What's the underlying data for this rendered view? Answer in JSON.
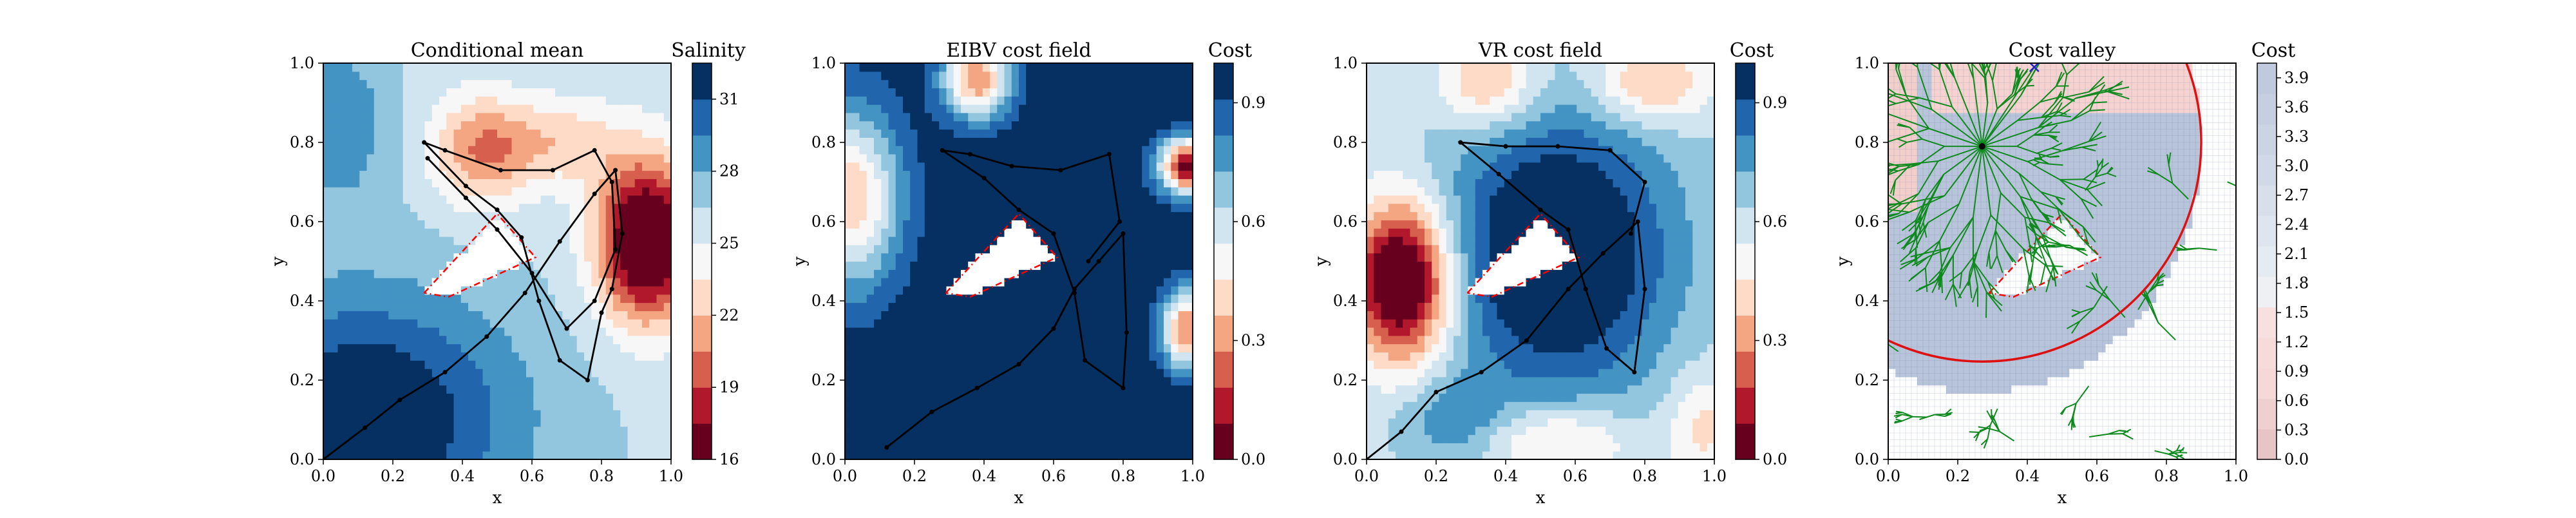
{
  "figure": {
    "panel_count": 4
  },
  "chart_data": [
    {
      "type": "heatmap",
      "title": "Conditional mean",
      "xlabel": "x",
      "ylabel": "y",
      "xlim": [
        0,
        1
      ],
      "ylim": [
        0,
        1
      ],
      "xticks": [
        "0.0",
        "0.2",
        "0.4",
        "0.6",
        "0.8",
        "1.0"
      ],
      "yticks": [
        "0.0",
        "0.2",
        "0.4",
        "0.6",
        "0.8",
        "1.0"
      ],
      "colormap": "RdBu",
      "colorbar": {
        "label": "Salinity",
        "ticks": [
          "16",
          "19",
          "22",
          "25",
          "28",
          "31"
        ],
        "range": [
          16,
          32.5
        ]
      },
      "obstacle": [
        [
          0.29,
          0.42
        ],
        [
          0.5,
          0.62
        ],
        [
          0.61,
          0.51
        ],
        [
          0.36,
          0.41
        ]
      ],
      "path": [
        [
          0.0,
          0.0
        ],
        [
          0.12,
          0.08
        ],
        [
          0.22,
          0.15
        ],
        [
          0.35,
          0.22
        ],
        [
          0.47,
          0.31
        ],
        [
          0.58,
          0.42
        ],
        [
          0.68,
          0.55
        ],
        [
          0.78,
          0.67
        ],
        [
          0.84,
          0.73
        ],
        [
          0.86,
          0.57
        ],
        [
          0.83,
          0.43
        ],
        [
          0.8,
          0.37
        ],
        [
          0.76,
          0.2
        ],
        [
          0.68,
          0.25
        ],
        [
          0.62,
          0.4
        ],
        [
          0.57,
          0.56
        ],
        [
          0.5,
          0.63
        ],
        [
          0.41,
          0.69
        ],
        [
          0.29,
          0.8
        ],
        [
          0.35,
          0.78
        ],
        [
          0.51,
          0.73
        ],
        [
          0.66,
          0.73
        ],
        [
          0.78,
          0.78
        ],
        [
          0.83,
          0.7
        ],
        [
          0.84,
          0.53
        ],
        [
          0.78,
          0.4
        ],
        [
          0.7,
          0.33
        ],
        [
          0.6,
          0.47
        ],
        [
          0.5,
          0.58
        ],
        [
          0.41,
          0.66
        ],
        [
          0.3,
          0.76
        ]
      ]
    },
    {
      "type": "heatmap",
      "title": "EIBV cost field",
      "xlabel": "x",
      "ylabel": "y",
      "xlim": [
        0,
        1
      ],
      "ylim": [
        0,
        1
      ],
      "xticks": [
        "0.0",
        "0.2",
        "0.4",
        "0.6",
        "0.8",
        "1.0"
      ],
      "yticks": [
        "0.0",
        "0.2",
        "0.4",
        "0.6",
        "0.8",
        "1.0"
      ],
      "colormap": "RdBu",
      "colorbar": {
        "label": "Cost",
        "ticks": [
          "0.0",
          "0.3",
          "0.6",
          "0.9"
        ],
        "range": [
          0,
          1
        ]
      },
      "obstacle": [
        [
          0.29,
          0.42
        ],
        [
          0.5,
          0.62
        ],
        [
          0.61,
          0.51
        ],
        [
          0.36,
          0.41
        ]
      ],
      "path": [
        [
          0.12,
          0.03
        ],
        [
          0.25,
          0.12
        ],
        [
          0.38,
          0.18
        ],
        [
          0.5,
          0.24
        ],
        [
          0.6,
          0.33
        ],
        [
          0.66,
          0.43
        ],
        [
          0.73,
          0.5
        ],
        [
          0.8,
          0.57
        ],
        [
          0.81,
          0.32
        ],
        [
          0.8,
          0.18
        ],
        [
          0.69,
          0.25
        ],
        [
          0.66,
          0.42
        ],
        [
          0.6,
          0.57
        ],
        [
          0.5,
          0.63
        ],
        [
          0.4,
          0.71
        ],
        [
          0.28,
          0.78
        ],
        [
          0.36,
          0.77
        ],
        [
          0.48,
          0.74
        ],
        [
          0.62,
          0.73
        ],
        [
          0.76,
          0.77
        ],
        [
          0.79,
          0.6
        ],
        [
          0.7,
          0.5
        ]
      ]
    },
    {
      "type": "heatmap",
      "title": "VR cost field",
      "xlabel": "x",
      "ylabel": "y",
      "xlim": [
        0,
        1
      ],
      "ylim": [
        0,
        1
      ],
      "xticks": [
        "0.0",
        "0.2",
        "0.4",
        "0.6",
        "0.8",
        "1.0"
      ],
      "yticks": [
        "0.0",
        "0.2",
        "0.4",
        "0.6",
        "0.8",
        "1.0"
      ],
      "colormap": "RdBu",
      "colorbar": {
        "label": "Cost",
        "ticks": [
          "0.0",
          "0.3",
          "0.6",
          "0.9"
        ],
        "range": [
          0,
          1
        ]
      },
      "obstacle": [
        [
          0.29,
          0.42
        ],
        [
          0.5,
          0.62
        ],
        [
          0.61,
          0.51
        ],
        [
          0.36,
          0.41
        ]
      ],
      "path": [
        [
          0.0,
          0.0
        ],
        [
          0.1,
          0.07
        ],
        [
          0.2,
          0.17
        ],
        [
          0.33,
          0.22
        ],
        [
          0.46,
          0.3
        ],
        [
          0.58,
          0.43
        ],
        [
          0.68,
          0.52
        ],
        [
          0.78,
          0.6
        ],
        [
          0.8,
          0.43
        ],
        [
          0.77,
          0.22
        ],
        [
          0.69,
          0.28
        ],
        [
          0.63,
          0.43
        ],
        [
          0.58,
          0.58
        ],
        [
          0.5,
          0.63
        ],
        [
          0.38,
          0.72
        ],
        [
          0.27,
          0.8
        ],
        [
          0.4,
          0.79
        ],
        [
          0.55,
          0.79
        ],
        [
          0.7,
          0.78
        ],
        [
          0.8,
          0.7
        ],
        [
          0.76,
          0.57
        ]
      ]
    },
    {
      "type": "heatmap",
      "title": "Cost valley",
      "xlabel": "x",
      "ylabel": "y",
      "xlim": [
        0,
        1
      ],
      "ylim": [
        0,
        1
      ],
      "xticks": [
        "0.0",
        "0.2",
        "0.4",
        "0.6",
        "0.8",
        "1.0"
      ],
      "yticks": [
        "0.0",
        "0.2",
        "0.4",
        "0.6",
        "0.8",
        "1.0"
      ],
      "colormap": "RdBu",
      "colorbar": {
        "label": "Cost",
        "ticks": [
          "0.0",
          "0.3",
          "0.6",
          "0.9",
          "1.2",
          "1.5",
          "1.8",
          "2.1",
          "2.4",
          "2.7",
          "3.0",
          "3.3",
          "3.6",
          "3.9"
        ],
        "range": [
          0,
          4.05
        ]
      },
      "obstacle": [
        [
          0.29,
          0.42
        ],
        [
          0.5,
          0.62
        ],
        [
          0.61,
          0.51
        ],
        [
          0.36,
          0.41
        ]
      ],
      "budget_circle": {
        "center": [
          0.27,
          0.8
        ],
        "radius": 0.63,
        "color": "#dd1111"
      },
      "tree_root": [
        0.27,
        0.79
      ],
      "target": [
        0.42,
        0.99
      ]
    }
  ]
}
